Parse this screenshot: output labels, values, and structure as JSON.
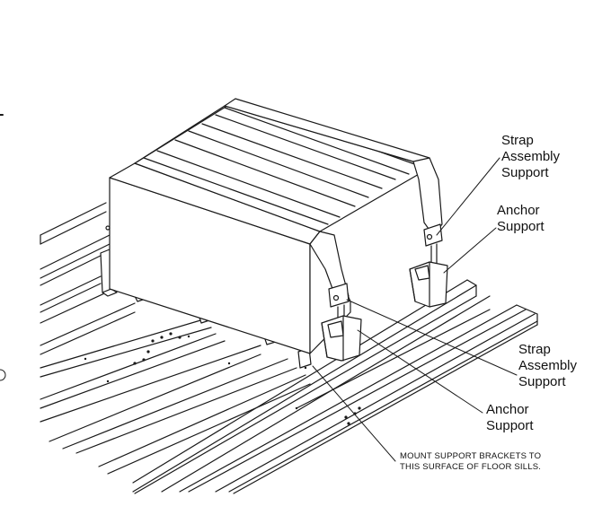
{
  "labels": {
    "strap_support_upper": [
      "Strap",
      "Assembly",
      "Support"
    ],
    "anchor_support_upper": [
      "Anchor",
      "Support"
    ],
    "strap_support_lower": [
      "Strap",
      "Assembly",
      "Support"
    ],
    "anchor_support_lower": [
      "Anchor",
      "Support"
    ]
  },
  "note": {
    "line1": "MOUNT SUPPORT BRACKETS TO",
    "line2": "THIS SURFACE OF FLOOR SILLS."
  },
  "colors": {
    "line": "#1a1a1a",
    "fill": "#ffffff",
    "shade": "#e8e8e8"
  }
}
